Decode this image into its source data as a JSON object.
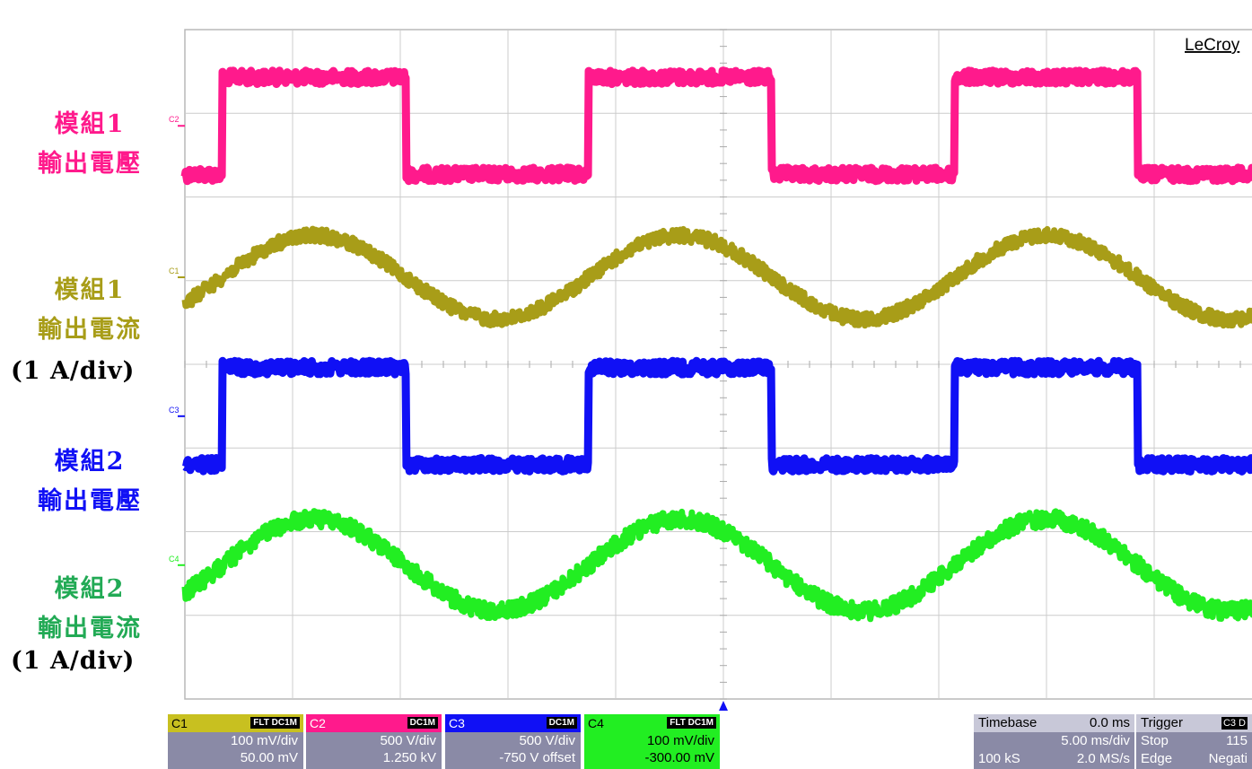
{
  "brand": "LeCroy",
  "chart_data": {
    "type": "line",
    "title": "",
    "xlabel": "",
    "ylabel": "",
    "x_divisions": 10,
    "y_divisions": 8,
    "series": [
      {
        "name": "C2",
        "shape": "square",
        "color": "#ff1a8c",
        "period_div": 3.4,
        "phase_div": 0.35,
        "center_div": 1.15,
        "amplitude_div": 0.58,
        "noise_div": 0.08
      },
      {
        "name": "C1",
        "shape": "sine",
        "color": "#a89d18",
        "period_div": 3.4,
        "phase_div": 0.35,
        "center_div": 2.96,
        "amplitude_div": 0.5,
        "noise_div": 0.08
      },
      {
        "name": "C3",
        "shape": "square",
        "color": "#1010f5",
        "period_div": 3.4,
        "phase_div": 0.35,
        "center_div": 4.62,
        "amplitude_div": 0.58,
        "noise_div": 0.08
      },
      {
        "name": "C4",
        "shape": "sine",
        "color": "#22ee22",
        "period_div": 3.4,
        "phase_div": 0.35,
        "center_div": 6.4,
        "amplitude_div": 0.55,
        "noise_div": 0.1
      }
    ]
  },
  "labels": [
    {
      "line1": "模組1",
      "line2": "輸出電壓",
      "color": "#ff1a8c"
    },
    {
      "line1": "模組1",
      "line2": "輸出電流",
      "unit": "(1 A/div)",
      "color": "#a89d18"
    },
    {
      "line1": "模組2",
      "line2": "輸出電壓",
      "color": "#1010f5"
    },
    {
      "line1": "模組2",
      "line2": "輸出電流",
      "unit": "(1 A/div)",
      "color": "#22aa55"
    }
  ],
  "channels": [
    {
      "name": "C1",
      "tags": "FLT DC1M",
      "color": "#c8c020",
      "scale": "100 mV/div",
      "offset": "50.00 mV"
    },
    {
      "name": "C2",
      "tags": "DC1M",
      "color": "#ff1a8c",
      "scale": "500 V/div",
      "offset": "1.250 kV"
    },
    {
      "name": "C3",
      "tags": "DC1M",
      "color": "#1010f5",
      "scale": "500 V/div",
      "offset": "-750 V offset"
    },
    {
      "name": "C4",
      "tags": "FLT DC1M",
      "color": "#22ee22",
      "scale": "100 mV/div",
      "offset": "-300.00 mV"
    }
  ],
  "timebase": {
    "label": "Timebase",
    "delay": "0.0 ms",
    "scale": "5.00 ms/div",
    "samples": "100 kS",
    "rate": "2.0 MS/s"
  },
  "trigger": {
    "label": "Trigger",
    "channel": "C3 D",
    "mode": "Stop",
    "level": "115",
    "type": "Edge",
    "slope": "Negati"
  }
}
